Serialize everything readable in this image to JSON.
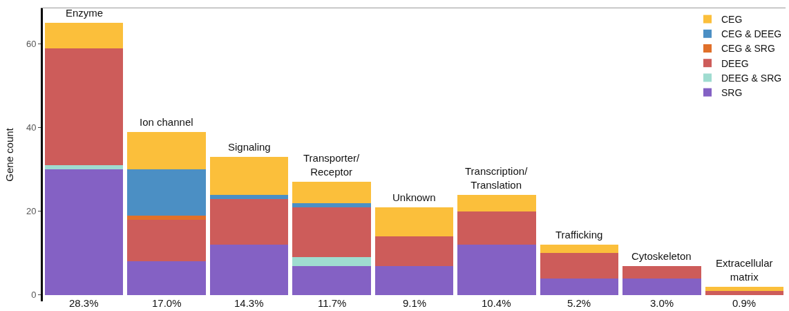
{
  "chart_data": {
    "type": "bar",
    "stacked": true,
    "ylabel": "Gene count",
    "categories": [
      "Enzyme",
      "Ion channel",
      "Signaling",
      "Transporter/\nReceptor",
      "Unknown",
      "Transcription/\nTranslation",
      "Trafficking",
      "Cytoskeleton",
      "Extracellular\nmatrix"
    ],
    "series": [
      {
        "name": "SRG",
        "color": "#8461c4",
        "values": [
          30,
          8,
          12,
          7,
          7,
          12,
          4,
          4,
          0
        ]
      },
      {
        "name": "DEEG & SRG",
        "color": "#9fdcd0",
        "values": [
          1,
          0,
          0,
          2,
          0,
          0,
          0,
          0,
          0
        ]
      },
      {
        "name": "DEEG",
        "color": "#cd5c5a",
        "values": [
          28,
          10,
          11,
          12,
          7,
          8,
          6,
          3,
          1
        ]
      },
      {
        "name": "CEG & SRG",
        "color": "#e0702a",
        "values": [
          0,
          1,
          0,
          0,
          0,
          0,
          0,
          0,
          0
        ]
      },
      {
        "name": "CEG & DEEG",
        "color": "#4b8fc4",
        "values": [
          0,
          11,
          1,
          1,
          0,
          0,
          0,
          0,
          0
        ]
      },
      {
        "name": "CEG",
        "color": "#fbbf3b",
        "values": [
          6,
          9,
          9,
          5,
          7,
          4,
          2,
          0,
          1
        ]
      }
    ],
    "ylim": [
      -1.5,
      68.5
    ],
    "yticks": [
      0,
      20,
      40,
      60
    ],
    "legend": "top right",
    "annotations": [
      {
        "text": "28.3%",
        "x": "Enzyme",
        "y": 0
      },
      {
        "text": "17.0%",
        "x": "Ion channel",
        "y": 0
      },
      {
        "text": "14.3%",
        "x": "Signaling",
        "y": 0
      },
      {
        "text": "11.7%",
        "x": "Transporter/\nReceptor",
        "y": 0
      },
      {
        "text": "9.1%",
        "x": "Unknown",
        "y": 0
      },
      {
        "text": "10.4%",
        "x": "Transcription/\nTranslation",
        "y": 0
      },
      {
        "text": "5.2%",
        "x": "Trafficking",
        "y": 0
      },
      {
        "text": "3.0%",
        "x": "Cytoskeleton",
        "y": 0
      },
      {
        "text": "0.9%",
        "x": "Extracellular\nmatrix",
        "y": 0
      }
    ]
  }
}
